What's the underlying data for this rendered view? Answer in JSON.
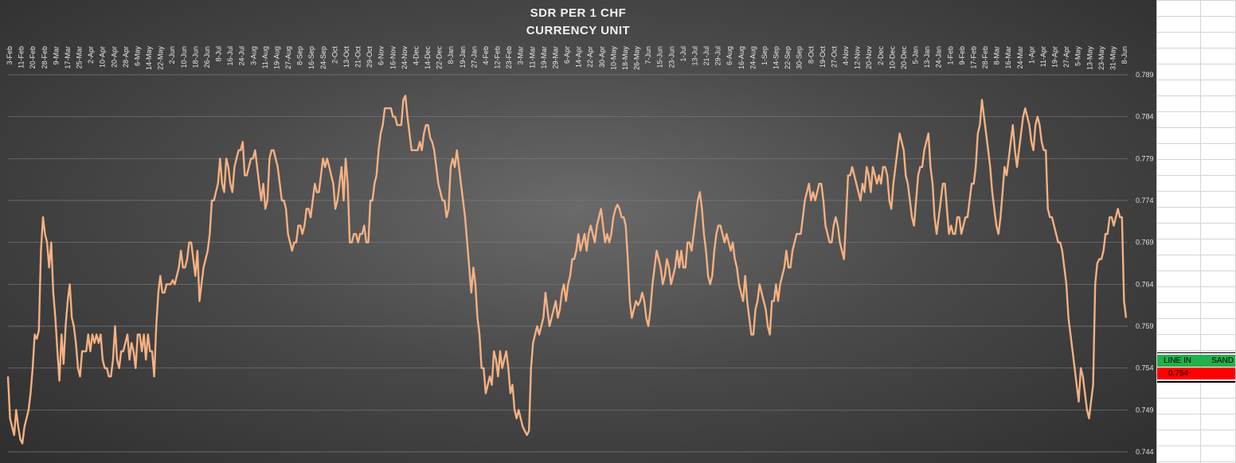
{
  "chart_data": {
    "type": "line",
    "title": "SDR PER 1 CHF",
    "subtitle": "CURRENCY UNIT",
    "xlabel": "",
    "ylabel": "",
    "ylim": [
      0.744,
      0.789
    ],
    "yticks": [
      "0.789",
      "0.784",
      "0.779",
      "0.774",
      "0.769",
      "0.764",
      "0.759",
      "0.754",
      "0.749",
      "0.744"
    ],
    "grid": true,
    "line_color": "#f4b183",
    "x_tick_labels": [
      "3-Feb",
      "11-Feb",
      "20-Feb",
      "28-Feb",
      "9-Mar",
      "17-Mar",
      "25-Mar",
      "2-Apr",
      "10-Apr",
      "20-Apr",
      "28-Apr",
      "6-May",
      "14-May",
      "22-May",
      "2-Jun",
      "10-Jun",
      "18-Jun",
      "26-Jun",
      "8-Jul",
      "16-Jul",
      "24-Jul",
      "3-Aug",
      "11-Aug",
      "19-Aug",
      "27-Aug",
      "8-Sep",
      "16-Sep",
      "24-Sep",
      "2-Oct",
      "13-Oct",
      "21-Oct",
      "29-Oct",
      "6-Nov",
      "16-Nov",
      "24-Nov",
      "4-Dec",
      "14-Dec",
      "22-Dec",
      "8-Jan",
      "19-Jan",
      "27-Jan",
      "4-Feb",
      "12-Feb",
      "23-Feb",
      "3-Mar",
      "11-Mar",
      "19-Mar",
      "29-Mar",
      "6-Apr",
      "14-Apr",
      "22-Apr",
      "30-Apr",
      "10-May",
      "18-May",
      "26-May",
      "7-Jun",
      "15-Jun",
      "23-Jun",
      "1-Jul",
      "13-Jul",
      "21-Jul",
      "29-Jul",
      "6-Aug",
      "16-Aug",
      "24-Aug",
      "1-Sep",
      "14-Sep",
      "22-Sep",
      "30-Sep",
      "8-Oct",
      "19-Oct",
      "27-Oct",
      "4-Nov",
      "12-Nov",
      "20-Nov",
      "2-Dec",
      "10-Dec",
      "20-Dec",
      "5-Jan",
      "13-Jan",
      "24-Jan",
      "1-Feb",
      "9-Feb",
      "17-Feb",
      "28-Feb",
      "8-Mar",
      "16-Mar",
      "24-Mar",
      "1-Apr",
      "11-Apr",
      "19-Apr",
      "27-Apr",
      "5-May",
      "13-May",
      "23-May",
      "31-May",
      "8-Jun"
    ],
    "series": [
      {
        "values": [
          0.753,
          0.748,
          0.747,
          0.746,
          0.749,
          0.747,
          0.7455,
          0.745,
          0.747,
          0.748,
          0.749,
          0.751,
          0.754,
          0.758,
          0.7575,
          0.7585,
          0.768,
          0.772,
          0.77,
          0.769,
          0.766,
          0.769,
          0.763,
          0.76,
          0.756,
          0.7525,
          0.758,
          0.7545,
          0.759,
          0.762,
          0.764,
          0.76,
          0.759,
          0.757,
          0.754,
          0.753,
          0.756,
          0.756,
          0.756,
          0.758,
          0.756,
          0.758,
          0.757,
          0.758,
          0.757,
          0.758,
          0.755,
          0.754,
          0.754,
          0.753,
          0.753,
          0.755,
          0.759,
          0.755,
          0.754,
          0.756,
          0.756,
          0.757,
          0.758,
          0.755,
          0.757,
          0.756,
          0.754,
          0.758,
          0.758,
          0.756,
          0.758,
          0.755,
          0.758,
          0.756,
          0.756,
          0.753,
          0.759,
          0.763,
          0.765,
          0.763,
          0.763,
          0.764,
          0.764,
          0.764,
          0.7645,
          0.764,
          0.765,
          0.766,
          0.768,
          0.766,
          0.766,
          0.767,
          0.769,
          0.769,
          0.767,
          0.765,
          0.768,
          0.762,
          0.764,
          0.766,
          0.767,
          0.768,
          0.77,
          0.774,
          0.774,
          0.775,
          0.776,
          0.779,
          0.776,
          0.775,
          0.779,
          0.778,
          0.776,
          0.775,
          0.778,
          0.779,
          0.78,
          0.78,
          0.781,
          0.777,
          0.777,
          0.778,
          0.779,
          0.779,
          0.78,
          0.778,
          0.776,
          0.774,
          0.776,
          0.773,
          0.774,
          0.779,
          0.78,
          0.78,
          0.779,
          0.778,
          0.776,
          0.774,
          0.774,
          0.773,
          0.77,
          0.769,
          0.768,
          0.769,
          0.769,
          0.771,
          0.771,
          0.77,
          0.771,
          0.773,
          0.773,
          0.772,
          0.774,
          0.776,
          0.775,
          0.775,
          0.777,
          0.779,
          0.778,
          0.779,
          0.778,
          0.777,
          0.776,
          0.773,
          0.774,
          0.776,
          0.778,
          0.774,
          0.779,
          0.776,
          0.769,
          0.769,
          0.77,
          0.77,
          0.769,
          0.77,
          0.77,
          0.771,
          0.769,
          0.769,
          0.774,
          0.774,
          0.776,
          0.777,
          0.78,
          0.782,
          0.783,
          0.785,
          0.785,
          0.785,
          0.785,
          0.784,
          0.784,
          0.783,
          0.783,
          0.783,
          0.786,
          0.7865,
          0.784,
          0.782,
          0.78,
          0.78,
          0.78,
          0.78,
          0.781,
          0.78,
          0.782,
          0.783,
          0.783,
          0.7815,
          0.781,
          0.78,
          0.778,
          0.776,
          0.775,
          0.774,
          0.774,
          0.772,
          0.773,
          0.778,
          0.779,
          0.778,
          0.78,
          0.778,
          0.776,
          0.774,
          0.772,
          0.769,
          0.766,
          0.763,
          0.766,
          0.764,
          0.76,
          0.758,
          0.754,
          0.754,
          0.751,
          0.752,
          0.753,
          0.752,
          0.756,
          0.755,
          0.753,
          0.756,
          0.754,
          0.755,
          0.756,
          0.754,
          0.751,
          0.752,
          0.749,
          0.748,
          0.749,
          0.748,
          0.747,
          0.7465,
          0.746,
          0.7465,
          0.754,
          0.757,
          0.758,
          0.759,
          0.758,
          0.759,
          0.76,
          0.763,
          0.761,
          0.759,
          0.76,
          0.761,
          0.762,
          0.76,
          0.761,
          0.763,
          0.764,
          0.762,
          0.764,
          0.765,
          0.767,
          0.767,
          0.768,
          0.77,
          0.768,
          0.769,
          0.77,
          0.768,
          0.77,
          0.771,
          0.77,
          0.769,
          0.771,
          0.772,
          0.773,
          0.771,
          0.769,
          0.77,
          0.769,
          0.77,
          0.772,
          0.773,
          0.7735,
          0.773,
          0.772,
          0.772,
          0.771,
          0.767,
          0.762,
          0.76,
          0.761,
          0.762,
          0.7615,
          0.762,
          0.763,
          0.762,
          0.76,
          0.759,
          0.761,
          0.764,
          0.766,
          0.768,
          0.767,
          0.766,
          0.764,
          0.765,
          0.767,
          0.766,
          0.764,
          0.765,
          0.766,
          0.768,
          0.766,
          0.768,
          0.766,
          0.766,
          0.769,
          0.769,
          0.768,
          0.77,
          0.772,
          0.774,
          0.775,
          0.773,
          0.77,
          0.768,
          0.765,
          0.764,
          0.765,
          0.768,
          0.77,
          0.771,
          0.771,
          0.77,
          0.769,
          0.77,
          0.769,
          0.768,
          0.769,
          0.767,
          0.766,
          0.764,
          0.763,
          0.762,
          0.765,
          0.762,
          0.76,
          0.758,
          0.758,
          0.761,
          0.762,
          0.764,
          0.763,
          0.762,
          0.761,
          0.759,
          0.758,
          0.762,
          0.762,
          0.764,
          0.762,
          0.764,
          0.765,
          0.766,
          0.768,
          0.766,
          0.766,
          0.768,
          0.769,
          0.77,
          0.77,
          0.77,
          0.772,
          0.774,
          0.775,
          0.776,
          0.774,
          0.775,
          0.774,
          0.775,
          0.776,
          0.776,
          0.774,
          0.771,
          0.77,
          0.769,
          0.769,
          0.771,
          0.772,
          0.771,
          0.769,
          0.768,
          0.767,
          0.772,
          0.777,
          0.777,
          0.778,
          0.777,
          0.776,
          0.775,
          0.774,
          0.776,
          0.775,
          0.778,
          0.777,
          0.775,
          0.778,
          0.777,
          0.776,
          0.777,
          0.776,
          0.778,
          0.778,
          0.777,
          0.774,
          0.773,
          0.776,
          0.778,
          0.78,
          0.782,
          0.781,
          0.78,
          0.777,
          0.776,
          0.774,
          0.772,
          0.771,
          0.774,
          0.777,
          0.778,
          0.778,
          0.78,
          0.781,
          0.782,
          0.778,
          0.776,
          0.772,
          0.77,
          0.772,
          0.774,
          0.776,
          0.776,
          0.773,
          0.77,
          0.771,
          0.77,
          0.77,
          0.772,
          0.772,
          0.77,
          0.771,
          0.772,
          0.772,
          0.774,
          0.776,
          0.776,
          0.778,
          0.782,
          0.783,
          0.786,
          0.784,
          0.782,
          0.78,
          0.778,
          0.775,
          0.773,
          0.771,
          0.77,
          0.772,
          0.775,
          0.778,
          0.777,
          0.779,
          0.781,
          0.783,
          0.78,
          0.778,
          0.78,
          0.782,
          0.784,
          0.785,
          0.784,
          0.783,
          0.781,
          0.78,
          0.783,
          0.784,
          0.783,
          0.781,
          0.78,
          0.78,
          0.773,
          0.772,
          0.772,
          0.771,
          0.77,
          0.769,
          0.769,
          0.768,
          0.766,
          0.764,
          0.76,
          0.758,
          0.756,
          0.754,
          0.752,
          0.75,
          0.754,
          0.753,
          0.751,
          0.749,
          0.748,
          0.75,
          0.752,
          0.764,
          0.7665,
          0.767,
          0.767,
          0.768,
          0.77,
          0.77,
          0.772,
          0.772,
          0.771,
          0.772,
          0.773,
          0.772,
          0.772,
          0.762,
          0.76
        ]
      }
    ]
  },
  "sidebar_legend": {
    "label_left": "LINE IN",
    "label_right": "SAND",
    "value": "0.754",
    "top_color": "#22b14c",
    "bottom_color": "#ff0000"
  }
}
